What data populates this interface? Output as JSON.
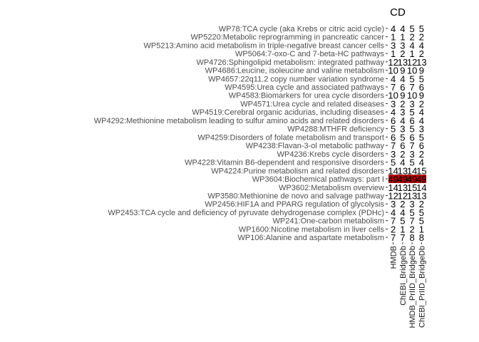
{
  "chart_data": {
    "type": "heatmap",
    "facet_title": "CD",
    "columns": [
      "HMDB",
      "ChEBI_BridgeDb",
      "HMDB_PrIID_BridgeDb",
      "ChEBI_PrIID_BridgeDb"
    ],
    "rows": [
      {
        "label": "WP78:TCA cycle (aka Krebs or citric acid cycle)",
        "values": [
          4,
          4,
          5,
          5
        ]
      },
      {
        "label": "WP5220:Metabolic reprogramming in pancreatic cancer",
        "values": [
          1,
          1,
          2,
          2
        ]
      },
      {
        "label": "WP5213:Amino acid metabolism in triple-negative breast cancer cells",
        "values": [
          3,
          3,
          4,
          4
        ]
      },
      {
        "label": "WP5064:7-oxo-C and 7-beta-HC pathways",
        "values": [
          1,
          2,
          1,
          2
        ]
      },
      {
        "label": "WP4726:Sphingolipid metabolism: integrated pathway",
        "values": [
          12,
          13,
          12,
          13
        ]
      },
      {
        "label": "WP4686:Leucine, isoleucine and valine metabolism",
        "values": [
          10,
          9,
          10,
          9
        ]
      },
      {
        "label": "WP4657:22q11.2 copy number variation syndrome",
        "values": [
          4,
          4,
          5,
          5
        ]
      },
      {
        "label": "WP4595:Urea cycle and associated pathways",
        "values": [
          7,
          6,
          7,
          6
        ]
      },
      {
        "label": "WP4583:Biomarkers for urea cycle disorders",
        "values": [
          10,
          9,
          10,
          9
        ]
      },
      {
        "label": "WP4571:Urea cycle and related diseases",
        "values": [
          3,
          2,
          3,
          2
        ]
      },
      {
        "label": "WP4519:Cerebral organic acidurias, including diseases",
        "values": [
          4,
          3,
          5,
          4
        ]
      },
      {
        "label": "WP4292:Methionine metabolism leading to sulfur amino acids and related disorders",
        "values": [
          6,
          4,
          6,
          4
        ]
      },
      {
        "label": "WP4288:MTHFR deficiency",
        "values": [
          5,
          3,
          5,
          3
        ]
      },
      {
        "label": "WP4259:Disorders of folate metabolism and transport",
        "values": [
          6,
          5,
          6,
          5
        ]
      },
      {
        "label": "WP4238:Flavan-3-ol metabolic pathway",
        "values": [
          7,
          6,
          7,
          6
        ]
      },
      {
        "label": "WP4236:Krebs cycle disorders",
        "values": [
          3,
          2,
          3,
          2
        ]
      },
      {
        "label": "WP4228:Vitamin B6-dependent and responsive disorders",
        "values": [
          5,
          4,
          5,
          4
        ]
      },
      {
        "label": "WP4224:Purine metabolism and related disorders",
        "values": [
          14,
          13,
          14,
          15
        ]
      },
      {
        "label": "WP3604:Biochemical pathways: part I",
        "values": [
          49,
          49,
          49,
          49
        ],
        "highlight": true
      },
      {
        "label": "WP3602:Metabolism overview",
        "values": [
          14,
          13,
          15,
          14
        ]
      },
      {
        "label": "WP3580:Methionine de novo and salvage pathway",
        "values": [
          12,
          12,
          13,
          13
        ]
      },
      {
        "label": "WP2456:HIF1A and PPARG regulation of glycolysis",
        "values": [
          3,
          2,
          3,
          2
        ]
      },
      {
        "label": "WP2453:TCA cycle and deficiency of pyruvate dehydrogenase complex (PDHc)",
        "values": [
          4,
          4,
          5,
          5
        ]
      },
      {
        "label": "WP241:One-carbon metabolism",
        "values": [
          7,
          5,
          7,
          5
        ]
      },
      {
        "label": "WP1600:Nicotine metabolism in liver cells",
        "values": [
          2,
          1,
          2,
          1
        ]
      },
      {
        "label": "WP106:Alanine and aspartate metabolism",
        "values": [
          7,
          7,
          8,
          8
        ]
      }
    ],
    "colors": {
      "highlight_fill": "#b30000",
      "text": "#000000",
      "row_label": "#4d4d4d"
    },
    "legend": "none",
    "grid": false
  }
}
